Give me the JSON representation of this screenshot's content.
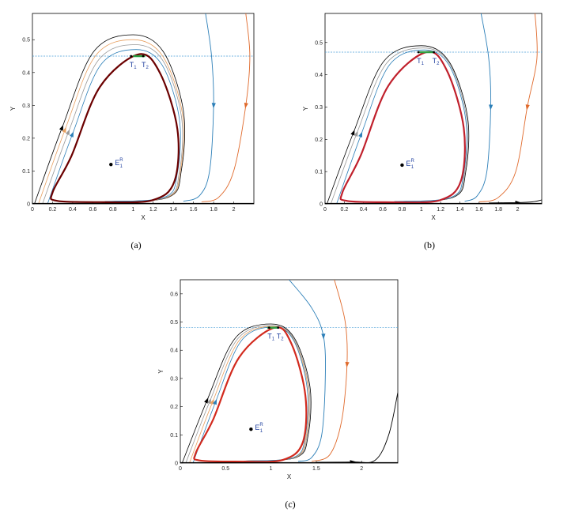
{
  "figure": {
    "panels": [
      {
        "caption": "(a)",
        "chart_data": {
          "type": "line",
          "xlabel": "X",
          "ylabel": "Y",
          "xlim": [
            0,
            2.2
          ],
          "ylim": [
            0,
            0.58
          ],
          "xticks": [
            0,
            0.2,
            0.4,
            0.6,
            0.8,
            1,
            1.2,
            1.4,
            1.6,
            1.8,
            2
          ],
          "xtick_labels": [
            "0",
            "0.2",
            "0.4",
            "0.6",
            "0.8",
            "1",
            "1.2",
            "1.4",
            "1.6",
            "1.8",
            "2"
          ],
          "yticks": [
            0,
            0.1,
            0.2,
            0.3,
            0.4,
            0.5
          ],
          "ytick_labels": [
            "0",
            "0.1",
            "0.2",
            "0.3",
            "0.4",
            "0.5"
          ],
          "threshold_y": 0.45,
          "equilibrium": {
            "x": 0.78,
            "y": 0.12,
            "label": "E",
            "sup": "R",
            "sub": "1"
          },
          "markers": [
            {
              "label": "T",
              "sub": "1",
              "x": 0.98,
              "y": 0.45
            },
            {
              "label": "T",
              "sub": "2",
              "x": 1.1,
              "y": 0.45
            }
          ],
          "impulse_segment": {
            "x0": 1.0,
            "x1": 1.12,
            "y": 0.45,
            "color": "#2e9e44"
          },
          "cycle": {
            "color": "#6b0000",
            "xmin": 0.2,
            "xmax": 1.44,
            "ymin": 0.005,
            "ymax": 0.455,
            "xpeak": 1.05,
            "xbottom": 0.72
          },
          "orbits": [
            {
              "color": "#000000",
              "x_start": 0.02,
              "peak_x": 1.0,
              "peak_y": 0.515,
              "x_right": 1.5
            },
            {
              "color": "#e8a060",
              "x_start": 0.06,
              "peak_x": 1.0,
              "peak_y": 0.5,
              "x_right": 1.49
            },
            {
              "color": "#999999",
              "x_start": 0.1,
              "peak_x": 1.02,
              "peak_y": 0.485,
              "x_right": 1.48
            },
            {
              "color": "#2c7fb8",
              "x_start": 0.15,
              "peak_x": 1.03,
              "peak_y": 0.47,
              "x_right": 1.46
            }
          ],
          "outer_curves": [
            {
              "color": "#2c7fb8",
              "points": [
                [
                  1.72,
                  0.58
                ],
                [
                  1.78,
                  0.45
                ],
                [
                  1.8,
                  0.3
                ],
                [
                  1.76,
                  0.1
                ],
                [
                  1.66,
                  0.025
                ],
                [
                  1.5,
                  0.008
                ]
              ]
            },
            {
              "color": "#e06a2c",
              "points": [
                [
                  2.12,
                  0.58
                ],
                [
                  2.16,
                  0.45
                ],
                [
                  2.12,
                  0.3
                ],
                [
                  2.0,
                  0.1
                ],
                [
                  1.85,
                  0.02
                ],
                [
                  1.68,
                  0.006
                ]
              ]
            }
          ]
        }
      },
      {
        "caption": "(b)",
        "chart_data": {
          "type": "line",
          "xlabel": "X",
          "ylabel": "Y",
          "xlim": [
            0,
            2.25
          ],
          "ylim": [
            0,
            0.59
          ],
          "xticks": [
            0,
            0.2,
            0.4,
            0.6,
            0.8,
            1,
            1.2,
            1.4,
            1.6,
            1.8,
            2
          ],
          "xtick_labels": [
            "0",
            "0.2",
            "0.4",
            "0.6",
            "0.8",
            "1",
            "1.2",
            "1.4",
            "1.6",
            "1.8",
            "2"
          ],
          "yticks": [
            0,
            0.1,
            0.2,
            0.3,
            0.4,
            0.5
          ],
          "ytick_labels": [
            "0",
            "0.1",
            "0.2",
            "0.3",
            "0.4",
            "0.5"
          ],
          "threshold_y": 0.47,
          "equilibrium": {
            "x": 0.8,
            "y": 0.12,
            "label": "E",
            "sup": "R",
            "sub": "1"
          },
          "markers": [
            {
              "label": "T",
              "sub": "1",
              "x": 0.97,
              "y": 0.47
            },
            {
              "label": "T",
              "sub": "2",
              "x": 1.13,
              "y": 0.47
            }
          ],
          "impulse_segment": {
            "x0": 0.98,
            "x1": 1.12,
            "y": 0.47,
            "color": "#2e9e44"
          },
          "cycle": {
            "color": "#c0202c",
            "xmin": 0.18,
            "xmax": 1.44,
            "ymin": 0.005,
            "ymax": 0.47,
            "xpeak": 1.05,
            "xbottom": 0.72
          },
          "orbits": [
            {
              "color": "#000000",
              "x_start": 0.02,
              "peak_x": 1.0,
              "peak_y": 0.49,
              "x_right": 1.48
            },
            {
              "color": "#999999",
              "x_start": 0.06,
              "peak_x": 1.02,
              "peak_y": 0.483,
              "x_right": 1.47
            },
            {
              "color": "#2c7fb8",
              "x_start": 0.12,
              "peak_x": 1.03,
              "peak_y": 0.477,
              "x_right": 1.46
            }
          ],
          "outer_curves": [
            {
              "color": "#2c7fb8",
              "points": [
                [
                  1.62,
                  0.59
                ],
                [
                  1.7,
                  0.45
                ],
                [
                  1.72,
                  0.3
                ],
                [
                  1.68,
                  0.1
                ],
                [
                  1.58,
                  0.025
                ],
                [
                  1.45,
                  0.008
                ]
              ]
            },
            {
              "color": "#e06a2c",
              "points": [
                [
                  2.18,
                  0.59
                ],
                [
                  2.2,
                  0.45
                ],
                [
                  2.1,
                  0.3
                ],
                [
                  1.98,
                  0.1
                ],
                [
                  1.8,
                  0.02
                ],
                [
                  1.6,
                  0.006
                ]
              ]
            },
            {
              "color": "#000000",
              "points": [
                [
                  1.7,
                  0.003
                ],
                [
                  2.0,
                  0.004
                ],
                [
                  2.15,
                  0.006
                ],
                [
                  2.25,
                  0.012
                ]
              ]
            }
          ]
        }
      },
      {
        "caption": "(c)",
        "chart_data": {
          "type": "line",
          "xlabel": "X",
          "ylabel": "Y",
          "xlim": [
            0,
            2.4
          ],
          "ylim": [
            0,
            0.65
          ],
          "xticks": [
            0,
            0.5,
            1,
            1.5,
            2
          ],
          "xtick_labels": [
            "0",
            "0.5",
            "1",
            "1.5",
            "2"
          ],
          "yticks": [
            0,
            0.1,
            0.2,
            0.3,
            0.4,
            0.5,
            0.6
          ],
          "ytick_labels": [
            "0",
            "0.1",
            "0.2",
            "0.3",
            "0.4",
            "0.5",
            "0.6"
          ],
          "threshold_y": 0.48,
          "equilibrium": {
            "x": 0.78,
            "y": 0.12,
            "label": "E",
            "sup": "R",
            "sub": "1"
          },
          "markers": [
            {
              "label": "T",
              "sub": "1",
              "x": 0.98,
              "y": 0.48
            },
            {
              "label": "T",
              "sub": "2",
              "x": 1.08,
              "y": 0.48
            }
          ],
          "impulse_segment": {
            "x0": 0.96,
            "x1": 1.08,
            "y": 0.48,
            "color": "#2e9e44"
          },
          "cycle": {
            "color": "#d22a1e",
            "xmin": 0.17,
            "xmax": 1.38,
            "ymin": 0.005,
            "ymax": 0.48,
            "xpeak": 1.04,
            "xbottom": 0.7
          },
          "orbits": [
            {
              "color": "#000000",
              "x_start": 0.02,
              "peak_x": 1.0,
              "peak_y": 0.493,
              "x_right": 1.43
            },
            {
              "color": "#999999",
              "x_start": 0.06,
              "peak_x": 1.01,
              "peak_y": 0.488,
              "x_right": 1.42
            },
            {
              "color": "#e8a060",
              "x_start": 0.1,
              "peak_x": 1.02,
              "peak_y": 0.484,
              "x_right": 1.41
            },
            {
              "color": "#2c7fb8",
              "x_start": 0.14,
              "peak_x": 1.03,
              "peak_y": 0.482,
              "x_right": 1.4
            }
          ],
          "outer_curves": [
            {
              "color": "#2c7fb8",
              "points": [
                [
                  1.2,
                  0.65
                ],
                [
                  1.45,
                  0.55
                ],
                [
                  1.58,
                  0.45
                ],
                [
                  1.6,
                  0.3
                ],
                [
                  1.56,
                  0.1
                ],
                [
                  1.45,
                  0.02
                ],
                [
                  1.3,
                  0.006
                ]
              ]
            },
            {
              "color": "#e06a2c",
              "points": [
                [
                  1.7,
                  0.65
                ],
                [
                  1.82,
                  0.5
                ],
                [
                  1.84,
                  0.35
                ],
                [
                  1.78,
                  0.15
                ],
                [
                  1.65,
                  0.03
                ],
                [
                  1.45,
                  0.006
                ]
              ]
            },
            {
              "color": "#000000",
              "points": [
                [
                  1.5,
                  0.003
                ],
                [
                  1.9,
                  0.004
                ],
                [
                  2.15,
                  0.01
                ],
                [
                  2.3,
                  0.1
                ],
                [
                  2.4,
                  0.25
                ]
              ]
            }
          ]
        }
      }
    ]
  }
}
